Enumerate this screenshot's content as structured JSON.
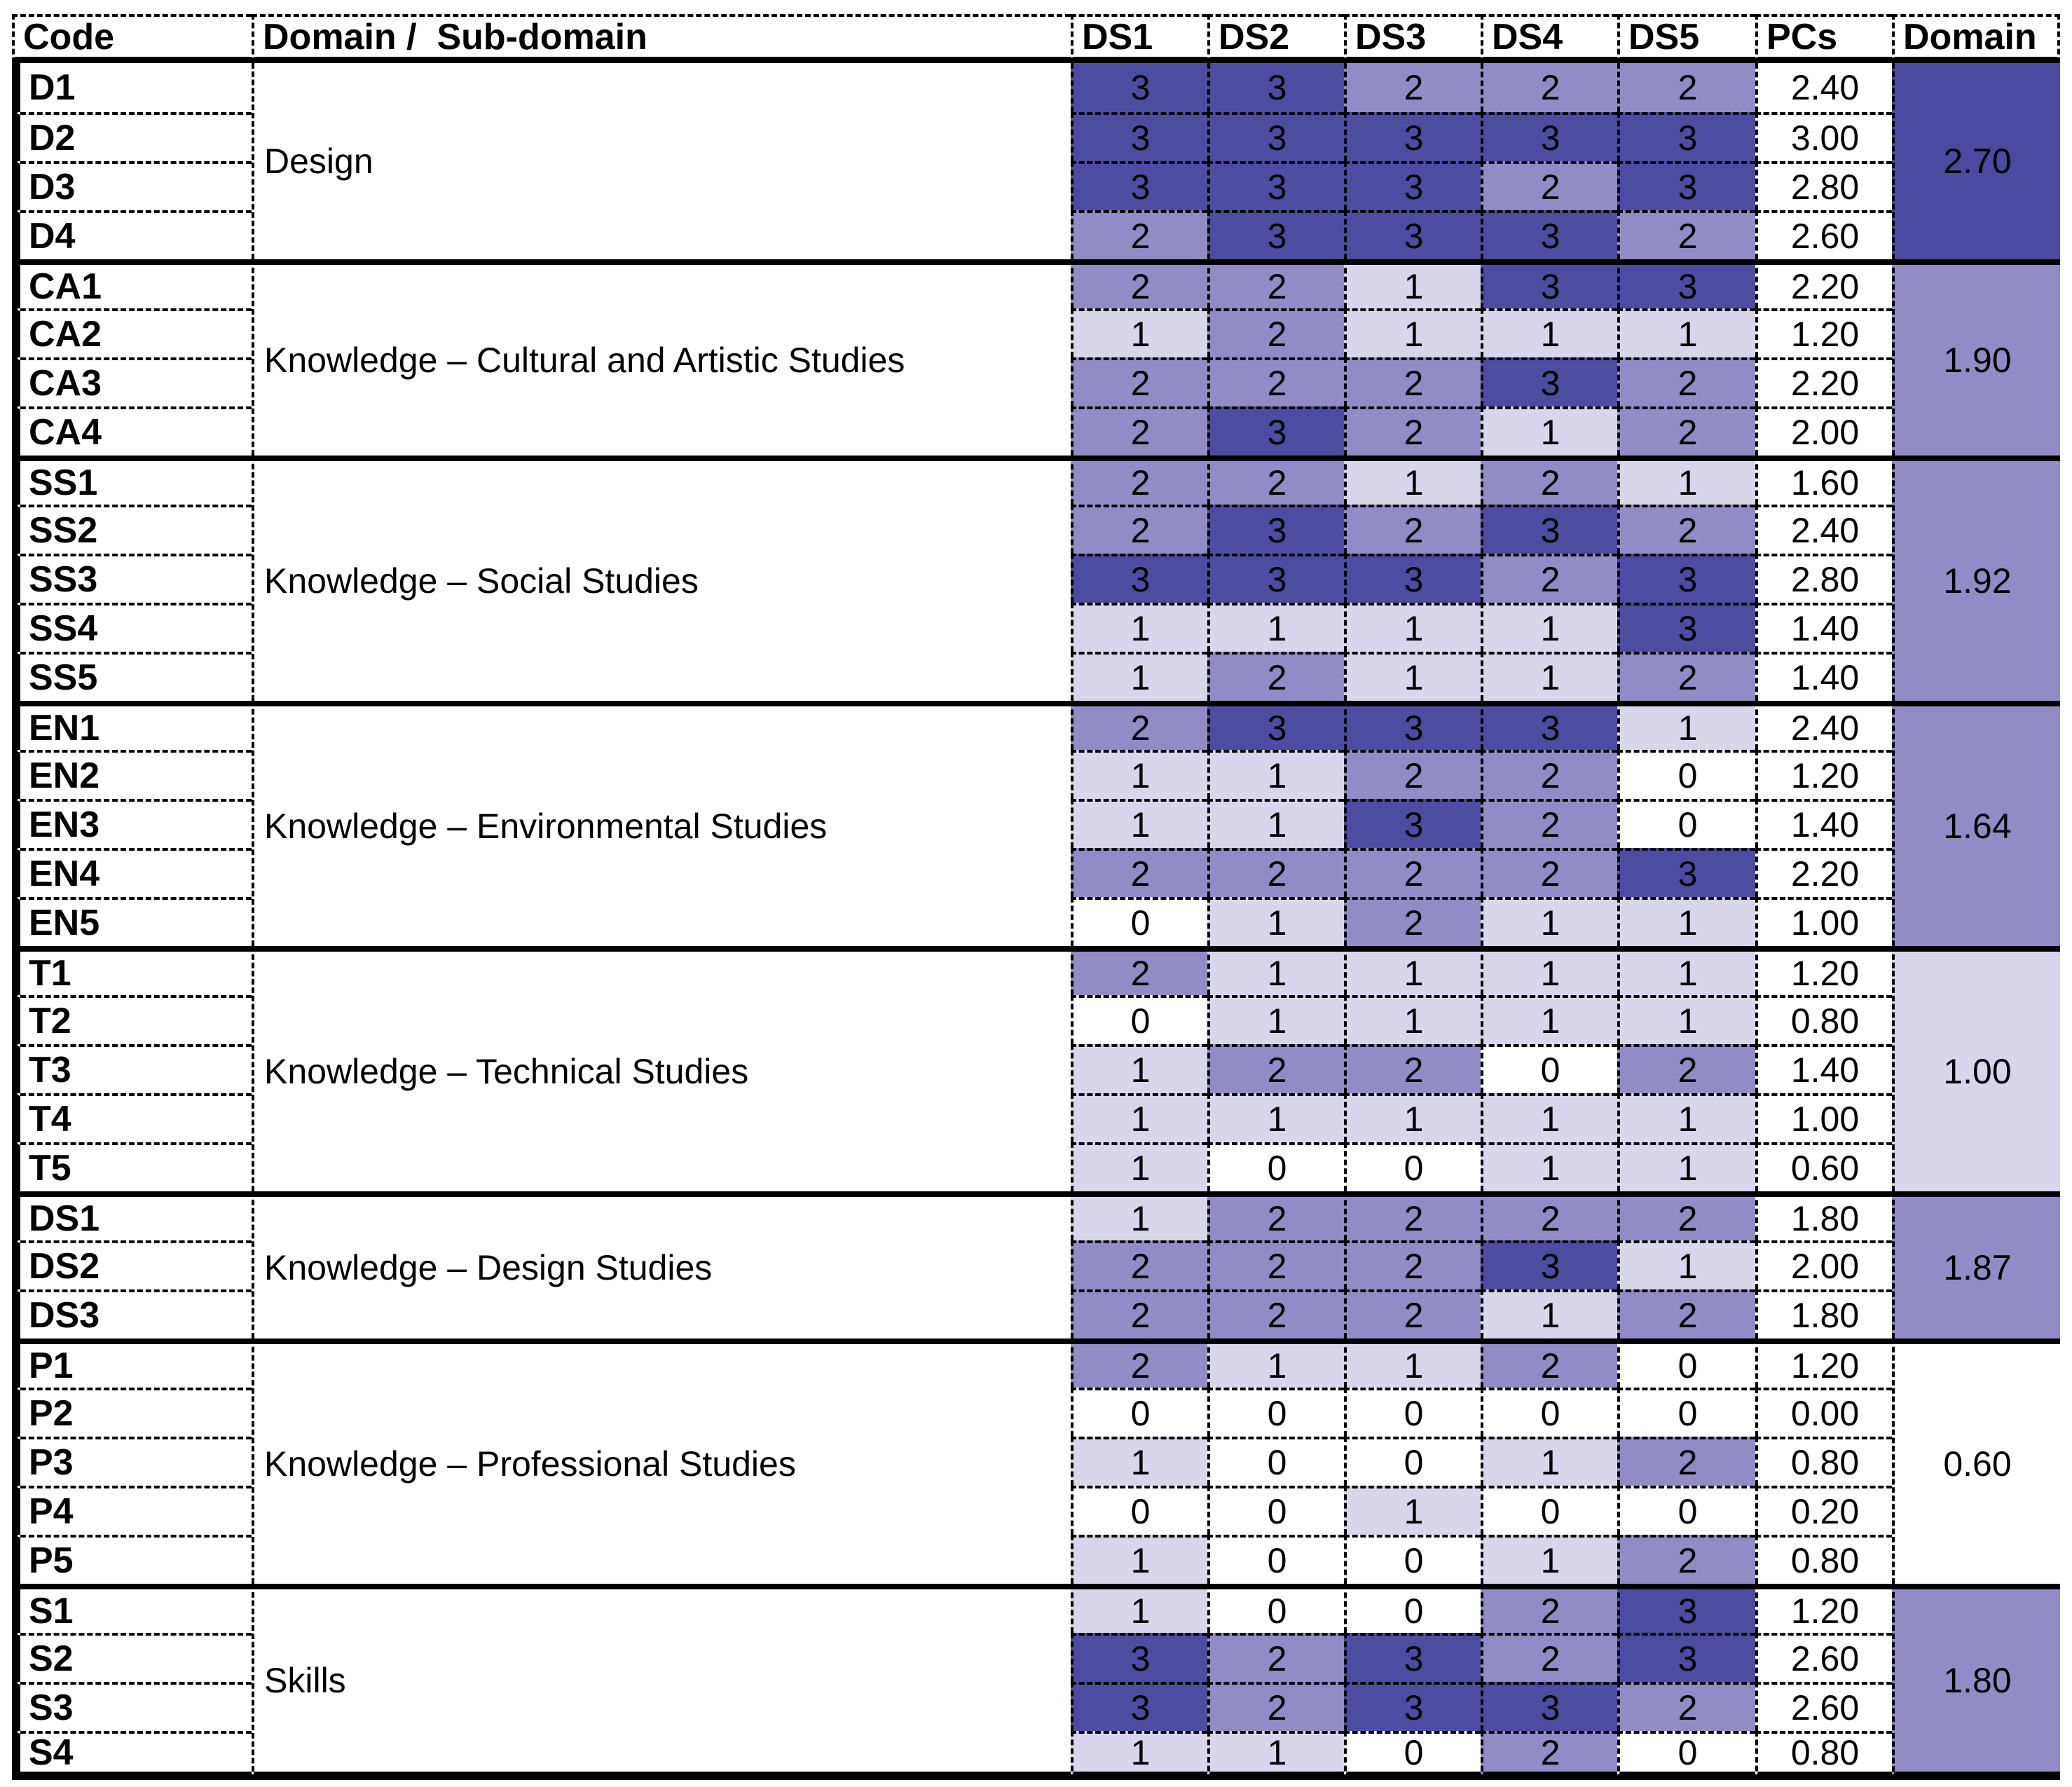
{
  "chart_data": {
    "type": "heatmap",
    "title": "",
    "headers": {
      "code": "Code",
      "subdomain": "Domain /  Sub-domain",
      "ds": [
        "DS1",
        "DS2",
        "DS3",
        "DS4",
        "DS5"
      ],
      "pcs": "PCs",
      "domain": "Domain"
    },
    "value_scale": {
      "min": 0,
      "max": 3
    },
    "value_colors": {
      "0": "#FFFFFF",
      "1": "#D9D6EC",
      "2": "#918BC6",
      "3": "#4E4CA0"
    },
    "groups": [
      {
        "name": "Design",
        "domain_avg": "2.70",
        "domain_color": "#4C4AA0",
        "rows": [
          {
            "code": "D1",
            "values": [
              3,
              3,
              2,
              2,
              2
            ],
            "pcs": "2.40"
          },
          {
            "code": "D2",
            "values": [
              3,
              3,
              3,
              3,
              3
            ],
            "pcs": "3.00"
          },
          {
            "code": "D3",
            "values": [
              3,
              3,
              3,
              2,
              3
            ],
            "pcs": "2.80"
          },
          {
            "code": "D4",
            "values": [
              2,
              3,
              3,
              3,
              2
            ],
            "pcs": "2.60"
          }
        ]
      },
      {
        "name": "Knowledge – Cultural and Artistic Studies",
        "domain_avg": "1.90",
        "domain_color": "#928CC6",
        "rows": [
          {
            "code": "CA1",
            "values": [
              2,
              2,
              1,
              3,
              3
            ],
            "pcs": "2.20"
          },
          {
            "code": "CA2",
            "values": [
              1,
              2,
              1,
              1,
              1
            ],
            "pcs": "1.20"
          },
          {
            "code": "CA3",
            "values": [
              2,
              2,
              2,
              3,
              2
            ],
            "pcs": "2.20"
          },
          {
            "code": "CA4",
            "values": [
              2,
              3,
              2,
              1,
              2
            ],
            "pcs": "2.00"
          }
        ]
      },
      {
        "name": "Knowledge – Social Studies",
        "domain_avg": "1.92",
        "domain_color": "#928CC6",
        "rows": [
          {
            "code": "SS1",
            "values": [
              2,
              2,
              1,
              2,
              1
            ],
            "pcs": "1.60"
          },
          {
            "code": "SS2",
            "values": [
              2,
              3,
              2,
              3,
              2
            ],
            "pcs": "2.40"
          },
          {
            "code": "SS3",
            "values": [
              3,
              3,
              3,
              2,
              3
            ],
            "pcs": "2.80"
          },
          {
            "code": "SS4",
            "values": [
              1,
              1,
              1,
              1,
              3
            ],
            "pcs": "1.40"
          },
          {
            "code": "SS5",
            "values": [
              1,
              2,
              1,
              1,
              2
            ],
            "pcs": "1.40"
          }
        ]
      },
      {
        "name": "Knowledge – Environmental Studies",
        "domain_avg": "1.64",
        "domain_color": "#928CC6",
        "rows": [
          {
            "code": "EN1",
            "values": [
              2,
              3,
              3,
              3,
              1
            ],
            "pcs": "2.40"
          },
          {
            "code": "EN2",
            "values": [
              1,
              1,
              2,
              2,
              0
            ],
            "pcs": "1.20"
          },
          {
            "code": "EN3",
            "values": [
              1,
              1,
              3,
              2,
              0
            ],
            "pcs": "1.40"
          },
          {
            "code": "EN4",
            "values": [
              2,
              2,
              2,
              2,
              3
            ],
            "pcs": "2.20"
          },
          {
            "code": "EN5",
            "values": [
              0,
              1,
              2,
              1,
              1
            ],
            "pcs": "1.00"
          }
        ]
      },
      {
        "name": "Knowledge – Technical Studies",
        "domain_avg": "1.00",
        "domain_color": "#D9D6EC",
        "rows": [
          {
            "code": "T1",
            "values": [
              2,
              1,
              1,
              1,
              1
            ],
            "pcs": "1.20"
          },
          {
            "code": "T2",
            "values": [
              0,
              1,
              1,
              1,
              1
            ],
            "pcs": "0.80"
          },
          {
            "code": "T3",
            "values": [
              1,
              2,
              2,
              0,
              2
            ],
            "pcs": "1.40"
          },
          {
            "code": "T4",
            "values": [
              1,
              1,
              1,
              1,
              1
            ],
            "pcs": "1.00"
          },
          {
            "code": "T5",
            "values": [
              1,
              0,
              0,
              1,
              1
            ],
            "pcs": "0.60"
          }
        ]
      },
      {
        "name": "Knowledge – Design Studies",
        "domain_avg": "1.87",
        "domain_color": "#928CC6",
        "rows": [
          {
            "code": "DS1",
            "values": [
              1,
              2,
              2,
              2,
              2
            ],
            "pcs": "1.80"
          },
          {
            "code": "DS2",
            "values": [
              2,
              2,
              2,
              3,
              1
            ],
            "pcs": "2.00"
          },
          {
            "code": "DS3",
            "values": [
              2,
              2,
              2,
              1,
              2
            ],
            "pcs": "1.80"
          }
        ]
      },
      {
        "name": "Knowledge – Professional Studies",
        "domain_avg": "0.60",
        "domain_color": "#FFFFFF",
        "rows": [
          {
            "code": "P1",
            "values": [
              2,
              1,
              1,
              2,
              0
            ],
            "pcs": "1.20"
          },
          {
            "code": "P2",
            "values": [
              0,
              0,
              0,
              0,
              0
            ],
            "pcs": "0.00"
          },
          {
            "code": "P3",
            "values": [
              1,
              0,
              0,
              1,
              2
            ],
            "pcs": "0.80"
          },
          {
            "code": "P4",
            "values": [
              0,
              0,
              1,
              0,
              0
            ],
            "pcs": "0.20"
          },
          {
            "code": "P5",
            "values": [
              1,
              0,
              0,
              1,
              2
            ],
            "pcs": "0.80"
          }
        ]
      },
      {
        "name": "Skills",
        "domain_avg": "1.80",
        "domain_color": "#928CC6",
        "rows": [
          {
            "code": "S1",
            "values": [
              1,
              0,
              0,
              2,
              3
            ],
            "pcs": "1.20"
          },
          {
            "code": "S2",
            "values": [
              3,
              2,
              3,
              2,
              3
            ],
            "pcs": "2.60"
          },
          {
            "code": "S3",
            "values": [
              3,
              2,
              3,
              3,
              2
            ],
            "pcs": "2.60"
          },
          {
            "code": "S4",
            "values": [
              1,
              1,
              0,
              2,
              0
            ],
            "pcs": "0.80"
          }
        ]
      }
    ]
  }
}
